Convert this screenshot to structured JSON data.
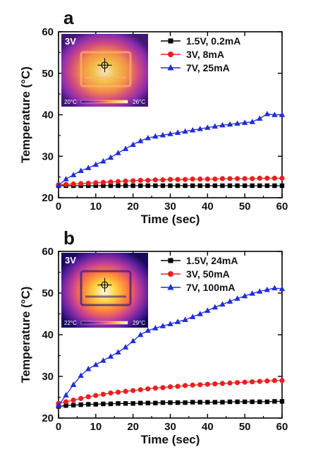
{
  "chart_data": [
    {
      "type": "line",
      "panel_label": "a",
      "xlabel": "Time (sec)",
      "ylabel": "Temperature (°C)",
      "xlim": [
        0,
        60
      ],
      "ylim": [
        20,
        60
      ],
      "xticks": [
        0,
        10,
        20,
        30,
        40,
        50,
        60
      ],
      "yticks": [
        20,
        30,
        40,
        50,
        60
      ],
      "grid": false,
      "legend_position": "top-right",
      "inset": {
        "label": "3V",
        "scale_min": "20°C",
        "scale_max": "26°C",
        "palette": [
          "#3a1470",
          "#8a2bb0",
          "#d94f7a",
          "#ff9a3c",
          "#ffd23f",
          "#fff7c0"
        ]
      },
      "series": [
        {
          "name": "1.5V, 0.2mA",
          "color": "#000000",
          "marker": "square",
          "x": [
            0,
            2,
            4,
            6,
            8,
            10,
            12,
            14,
            16,
            18,
            20,
            22,
            24,
            26,
            28,
            30,
            32,
            34,
            36,
            38,
            40,
            42,
            44,
            46,
            48,
            50,
            52,
            54,
            56,
            58,
            60
          ],
          "y": [
            22.9,
            22.9,
            22.9,
            22.9,
            22.9,
            22.9,
            22.9,
            22.9,
            22.9,
            22.9,
            22.9,
            22.9,
            22.9,
            22.9,
            22.9,
            22.9,
            22.9,
            22.9,
            22.9,
            22.9,
            22.9,
            22.9,
            22.9,
            22.9,
            22.9,
            22.9,
            22.9,
            22.9,
            22.9,
            22.9,
            22.9
          ]
        },
        {
          "name": "3V, 8mA",
          "color": "#e8201e",
          "marker": "circle",
          "x": [
            0,
            2,
            4,
            6,
            8,
            10,
            12,
            14,
            16,
            18,
            20,
            22,
            24,
            26,
            28,
            30,
            32,
            34,
            36,
            38,
            40,
            42,
            44,
            46,
            48,
            50,
            52,
            54,
            56,
            58,
            60
          ],
          "y": [
            23.1,
            23.2,
            23.3,
            23.4,
            23.5,
            23.6,
            23.7,
            23.8,
            23.9,
            24.0,
            24.1,
            24.2,
            24.2,
            24.3,
            24.3,
            24.4,
            24.4,
            24.4,
            24.5,
            24.5,
            24.5,
            24.5,
            24.6,
            24.6,
            24.6,
            24.6,
            24.6,
            24.7,
            24.7,
            24.7,
            24.7
          ]
        },
        {
          "name": "7V, 25mA",
          "color": "#1f2dd9",
          "marker": "triangle",
          "x": [
            0,
            2,
            4,
            6,
            8,
            10,
            12,
            14,
            16,
            18,
            20,
            22,
            24,
            26,
            28,
            30,
            32,
            34,
            36,
            38,
            40,
            42,
            44,
            46,
            48,
            50,
            52,
            54,
            56,
            58,
            60
          ],
          "y": [
            23.0,
            24.5,
            25.5,
            26.5,
            27.2,
            28.0,
            28.8,
            29.7,
            30.8,
            31.8,
            32.8,
            33.7,
            34.4,
            34.8,
            35.1,
            35.4,
            35.7,
            36.0,
            36.3,
            36.6,
            36.9,
            37.2,
            37.5,
            37.7,
            37.9,
            38.1,
            38.3,
            39.1,
            40.2,
            40.0,
            40.0
          ]
        }
      ]
    },
    {
      "type": "line",
      "panel_label": "b",
      "xlabel": "Time (sec)",
      "ylabel": "Temperature (°C)",
      "xlim": [
        0,
        60
      ],
      "ylim": [
        20,
        60
      ],
      "xticks": [
        0,
        10,
        20,
        30,
        40,
        50,
        60
      ],
      "yticks": [
        20,
        30,
        40,
        50,
        60
      ],
      "grid": false,
      "legend_position": "top-right",
      "inset": {
        "label": "3V",
        "scale_min": "22°C",
        "scale_max": "29°C",
        "palette": [
          "#1a0a5a",
          "#5a1fa0",
          "#c03c9a",
          "#ff7a3c",
          "#ffd23f",
          "#fffbe0"
        ]
      },
      "series": [
        {
          "name": "1.5V, 24mA",
          "color": "#000000",
          "marker": "square",
          "x": [
            0,
            2,
            4,
            6,
            8,
            10,
            12,
            14,
            16,
            18,
            20,
            22,
            24,
            26,
            28,
            30,
            32,
            34,
            36,
            38,
            40,
            42,
            44,
            46,
            48,
            50,
            52,
            54,
            56,
            58,
            60
          ],
          "y": [
            22.8,
            23.0,
            23.1,
            23.2,
            23.3,
            23.3,
            23.4,
            23.4,
            23.5,
            23.5,
            23.5,
            23.6,
            23.6,
            23.6,
            23.7,
            23.7,
            23.7,
            23.7,
            23.8,
            23.8,
            23.8,
            23.8,
            23.8,
            23.9,
            23.9,
            23.9,
            23.9,
            23.9,
            23.9,
            24.0,
            24.0
          ]
        },
        {
          "name": "3V, 50mA",
          "color": "#e8201e",
          "marker": "circle",
          "x": [
            0,
            2,
            4,
            6,
            8,
            10,
            12,
            14,
            16,
            18,
            20,
            22,
            24,
            26,
            28,
            30,
            32,
            34,
            36,
            38,
            40,
            42,
            44,
            46,
            48,
            50,
            52,
            54,
            56,
            58,
            60
          ],
          "y": [
            23.5,
            23.9,
            24.3,
            24.7,
            25.1,
            25.4,
            25.7,
            26.0,
            26.2,
            26.4,
            26.6,
            26.8,
            27.0,
            27.2,
            27.3,
            27.5,
            27.6,
            27.8,
            27.9,
            28.0,
            28.1,
            28.2,
            28.3,
            28.4,
            28.5,
            28.6,
            28.7,
            28.8,
            28.9,
            29.0,
            29.0
          ]
        },
        {
          "name": "7V, 100mA",
          "color": "#1f2dd9",
          "marker": "triangle",
          "x": [
            0,
            2,
            4,
            6,
            8,
            10,
            12,
            14,
            16,
            18,
            20,
            22,
            24,
            26,
            28,
            30,
            32,
            34,
            36,
            38,
            40,
            42,
            44,
            46,
            48,
            50,
            52,
            54,
            56,
            58,
            60
          ],
          "y": [
            23.0,
            25.5,
            28.0,
            30.2,
            31.8,
            32.8,
            33.8,
            34.8,
            35.8,
            37.0,
            38.5,
            40.0,
            41.0,
            41.6,
            42.1,
            42.6,
            43.1,
            43.6,
            44.3,
            45.0,
            45.8,
            46.6,
            47.3,
            48.0,
            48.7,
            49.3,
            49.9,
            50.4,
            50.8,
            51.2,
            51.0
          ]
        }
      ]
    }
  ]
}
